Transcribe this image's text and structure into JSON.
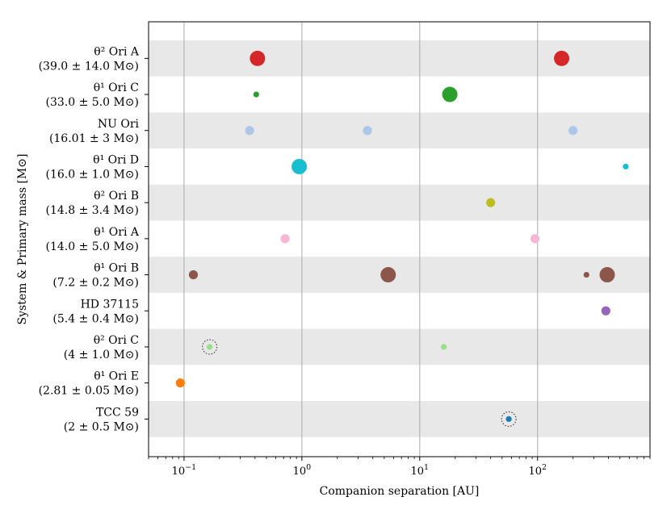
{
  "chart_data": {
    "type": "scatter",
    "xlabel": "Companion separation [AU]",
    "ylabel": "System & Primary mass [M⊙]",
    "xscale": "log",
    "xlim": [
      0.05,
      900
    ],
    "grid": "vertical",
    "xticks": [
      {
        "value": 0.1,
        "label": "10",
        "exp": "−1"
      },
      {
        "value": 1,
        "label": "10",
        "exp": "0"
      },
      {
        "value": 10,
        "label": "10",
        "exp": "1"
      },
      {
        "value": 100,
        "label": "10",
        "exp": "2"
      }
    ],
    "band_color": "#e8e8e8",
    "systems": [
      {
        "name": "θ² Ori A",
        "mass": "(39.0 ± 14.0 M⊙)",
        "color": "#d62728",
        "companions": [
          {
            "sep": 0.42,
            "size": "large"
          },
          {
            "sep": 160,
            "size": "large"
          }
        ]
      },
      {
        "name": "θ¹ Ori C",
        "mass": "(33.0 ± 5.0 M⊙)",
        "color": "#2ca02c",
        "companions": [
          {
            "sep": 0.41,
            "size": "small"
          },
          {
            "sep": 18,
            "size": "large"
          }
        ]
      },
      {
        "name": "NU Ori",
        "mass": "(16.01 ± 3 M⊙)",
        "color": "#aec7e8",
        "companions": [
          {
            "sep": 0.36,
            "size": "medium"
          },
          {
            "sep": 3.6,
            "size": "medium"
          },
          {
            "sep": 200,
            "size": "medium"
          }
        ]
      },
      {
        "name": "θ¹ Ori D",
        "mass": "(16.0 ± 1.0 M⊙)",
        "color": "#17becf",
        "companions": [
          {
            "sep": 0.95,
            "size": "large"
          },
          {
            "sep": 560,
            "size": "small"
          }
        ]
      },
      {
        "name": "θ² Ori B",
        "mass": "(14.8 ± 3.4 M⊙)",
        "color": "#bcbd22",
        "companions": [
          {
            "sep": 40,
            "size": "medium"
          }
        ]
      },
      {
        "name": "θ¹ Ori A",
        "mass": "(14.0 ± 5.0 M⊙)",
        "color": "#f7b6d2",
        "companions": [
          {
            "sep": 0.72,
            "size": "medium"
          },
          {
            "sep": 95,
            "size": "medium"
          }
        ]
      },
      {
        "name": "θ¹ Ori B",
        "mass": "(7.2 ± 0.2 M⊙)",
        "color": "#8c564b",
        "companions": [
          {
            "sep": 0.12,
            "size": "medium"
          },
          {
            "sep": 5.4,
            "size": "large"
          },
          {
            "sep": 260,
            "size": "small"
          },
          {
            "sep": 390,
            "size": "large"
          }
        ]
      },
      {
        "name": "HD 37115",
        "mass": "(5.4 ± 0.4 M⊙)",
        "color": "#9467bd",
        "companions": [
          {
            "sep": 380,
            "size": "medium"
          }
        ]
      },
      {
        "name": "θ² Ori C",
        "mass": "(4 ± 1.0 M⊙)",
        "color": "#98df8a",
        "companions": [
          {
            "sep": 0.165,
            "size": "small",
            "dotted_ring": true
          },
          {
            "sep": 16,
            "size": "small"
          }
        ]
      },
      {
        "name": "θ¹ Ori E",
        "mass": "(2.81 ± 0.05 M⊙)",
        "color": "#ff7f0e",
        "companions": [
          {
            "sep": 0.093,
            "size": "medium"
          }
        ]
      },
      {
        "name": "TCC 59",
        "mass": "(2 ± 0.5 M⊙)",
        "color": "#1f77b4",
        "companions": [
          {
            "sep": 57,
            "size": "small",
            "dotted_ring": true
          }
        ]
      }
    ]
  }
}
